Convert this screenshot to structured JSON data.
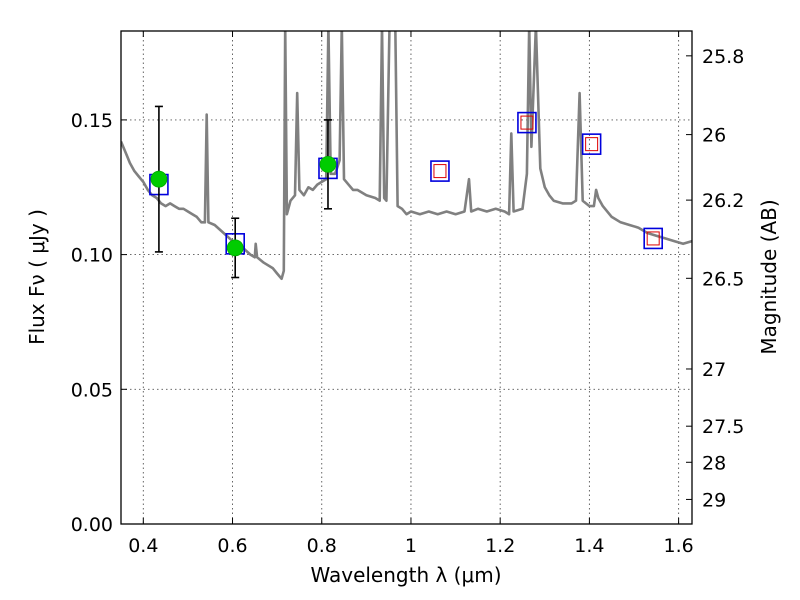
{
  "chart_data": {
    "type": "line",
    "xlabel": "Wavelength  λ (μm)",
    "ylabel": "Flux  Fν  ( μJy )",
    "ylabel_right": "Magnitude (AB)",
    "xlim": [
      0.35,
      1.63
    ],
    "ylim": [
      0.0,
      0.183
    ],
    "x_ticks": [
      0.4,
      0.6,
      0.8,
      1.0,
      1.2,
      1.4,
      1.6
    ],
    "x_tick_labels": [
      "0.4",
      "0.6",
      "0.8",
      "1",
      "1.2",
      "1.4",
      "1.6"
    ],
    "y_ticks": [
      0.0,
      0.05,
      0.1,
      0.15
    ],
    "y_tick_labels": [
      "0.00",
      "0.05",
      "0.10",
      "0.15"
    ],
    "right_ticks": [
      {
        "mag": 25.8,
        "label": "25.8"
      },
      {
        "mag": 26.0,
        "label": "26"
      },
      {
        "mag": 26.2,
        "label": "26.2"
      },
      {
        "mag": 26.5,
        "label": "26.5"
      },
      {
        "mag": 27.0,
        "label": "27"
      },
      {
        "mag": 27.5,
        "label": "27.5"
      },
      {
        "mag": 28.0,
        "label": "28"
      },
      {
        "mag": 29.0,
        "label": "29"
      }
    ],
    "grid": true,
    "colors": {
      "template": "#808080",
      "observed": "#00cc00",
      "model_box": "#0000dd",
      "nir_box": "#dd0000",
      "errorbar": "#000000"
    },
    "series": [
      {
        "role": "template_spectrum",
        "points": [
          [
            0.35,
            0.142
          ],
          [
            0.36,
            0.138
          ],
          [
            0.37,
            0.134
          ],
          [
            0.38,
            0.131
          ],
          [
            0.39,
            0.129
          ],
          [
            0.4,
            0.127
          ],
          [
            0.41,
            0.124
          ],
          [
            0.42,
            0.122
          ],
          [
            0.43,
            0.121
          ],
          [
            0.44,
            0.119
          ],
          [
            0.45,
            0.118
          ],
          [
            0.46,
            0.119
          ],
          [
            0.47,
            0.118
          ],
          [
            0.48,
            0.117
          ],
          [
            0.49,
            0.117
          ],
          [
            0.5,
            0.116
          ],
          [
            0.51,
            0.115
          ],
          [
            0.52,
            0.114
          ],
          [
            0.53,
            0.112
          ],
          [
            0.538,
            0.112
          ],
          [
            0.542,
            0.152
          ],
          [
            0.546,
            0.112
          ],
          [
            0.56,
            0.111
          ],
          [
            0.58,
            0.108
          ],
          [
            0.6,
            0.105
          ],
          [
            0.62,
            0.103
          ],
          [
            0.64,
            0.1
          ],
          [
            0.65,
            0.099
          ],
          [
            0.652,
            0.104
          ],
          [
            0.655,
            0.099
          ],
          [
            0.67,
            0.097
          ],
          [
            0.69,
            0.095
          ],
          [
            0.7,
            0.093
          ],
          [
            0.71,
            0.091
          ],
          [
            0.715,
            0.094
          ],
          [
            0.718,
            0.185
          ],
          [
            0.722,
            0.115
          ],
          [
            0.73,
            0.12
          ],
          [
            0.74,
            0.122
          ],
          [
            0.745,
            0.16
          ],
          [
            0.75,
            0.124
          ],
          [
            0.76,
            0.122
          ],
          [
            0.77,
            0.125
          ],
          [
            0.78,
            0.124
          ],
          [
            0.79,
            0.126
          ],
          [
            0.8,
            0.127
          ],
          [
            0.81,
            0.128
          ],
          [
            0.815,
            0.185
          ],
          [
            0.82,
            0.13
          ],
          [
            0.83,
            0.13
          ],
          [
            0.84,
            0.135
          ],
          [
            0.845,
            0.185
          ],
          [
            0.85,
            0.128
          ],
          [
            0.86,
            0.126
          ],
          [
            0.87,
            0.124
          ],
          [
            0.88,
            0.124
          ],
          [
            0.9,
            0.122
          ],
          [
            0.92,
            0.121
          ],
          [
            0.93,
            0.12
          ],
          [
            0.935,
            0.185
          ],
          [
            0.94,
            0.121
          ],
          [
            0.945,
            0.12
          ],
          [
            0.952,
            0.185
          ],
          [
            0.958,
            0.185
          ],
          [
            0.965,
            0.185
          ],
          [
            0.97,
            0.118
          ],
          [
            0.98,
            0.117
          ],
          [
            0.99,
            0.115
          ],
          [
            1.0,
            0.116
          ],
          [
            1.02,
            0.115
          ],
          [
            1.04,
            0.116
          ],
          [
            1.06,
            0.115
          ],
          [
            1.08,
            0.116
          ],
          [
            1.1,
            0.115
          ],
          [
            1.12,
            0.116
          ],
          [
            1.13,
            0.128
          ],
          [
            1.135,
            0.116
          ],
          [
            1.15,
            0.117
          ],
          [
            1.17,
            0.116
          ],
          [
            1.19,
            0.117
          ],
          [
            1.21,
            0.116
          ],
          [
            1.22,
            0.115
          ],
          [
            1.225,
            0.145
          ],
          [
            1.23,
            0.116
          ],
          [
            1.25,
            0.117
          ],
          [
            1.26,
            0.13
          ],
          [
            1.265,
            0.185
          ],
          [
            1.27,
            0.14
          ],
          [
            1.28,
            0.185
          ],
          [
            1.29,
            0.132
          ],
          [
            1.3,
            0.125
          ],
          [
            1.31,
            0.122
          ],
          [
            1.32,
            0.12
          ],
          [
            1.34,
            0.119
          ],
          [
            1.36,
            0.119
          ],
          [
            1.37,
            0.12
          ],
          [
            1.378,
            0.16
          ],
          [
            1.385,
            0.12
          ],
          [
            1.4,
            0.118
          ],
          [
            1.41,
            0.118
          ],
          [
            1.415,
            0.124
          ],
          [
            1.42,
            0.121
          ],
          [
            1.43,
            0.118
          ],
          [
            1.45,
            0.114
          ],
          [
            1.47,
            0.112
          ],
          [
            1.49,
            0.111
          ],
          [
            1.51,
            0.11
          ],
          [
            1.53,
            0.108
          ],
          [
            1.55,
            0.107
          ],
          [
            1.57,
            0.106
          ],
          [
            1.59,
            0.105
          ],
          [
            1.61,
            0.104
          ],
          [
            1.63,
            0.105
          ]
        ]
      },
      {
        "role": "observed_points",
        "points": [
          {
            "x": 0.435,
            "y": 0.128,
            "err": 0.027
          },
          {
            "x": 0.606,
            "y": 0.1025,
            "err": 0.011
          },
          {
            "x": 0.814,
            "y": 0.1335,
            "err": 0.0165
          }
        ]
      },
      {
        "role": "model_photometry",
        "points": [
          {
            "x": 0.435,
            "y": 0.126
          },
          {
            "x": 0.606,
            "y": 0.104
          },
          {
            "x": 0.814,
            "y": 0.132
          },
          {
            "x": 1.065,
            "y": 0.131
          },
          {
            "x": 1.26,
            "y": 0.149
          },
          {
            "x": 1.405,
            "y": 0.141
          },
          {
            "x": 1.543,
            "y": 0.106
          }
        ]
      },
      {
        "role": "nir_points",
        "points": [
          {
            "x": 1.065,
            "y": 0.131
          },
          {
            "x": 1.26,
            "y": 0.149
          },
          {
            "x": 1.405,
            "y": 0.141
          },
          {
            "x": 1.543,
            "y": 0.106
          }
        ]
      }
    ]
  }
}
